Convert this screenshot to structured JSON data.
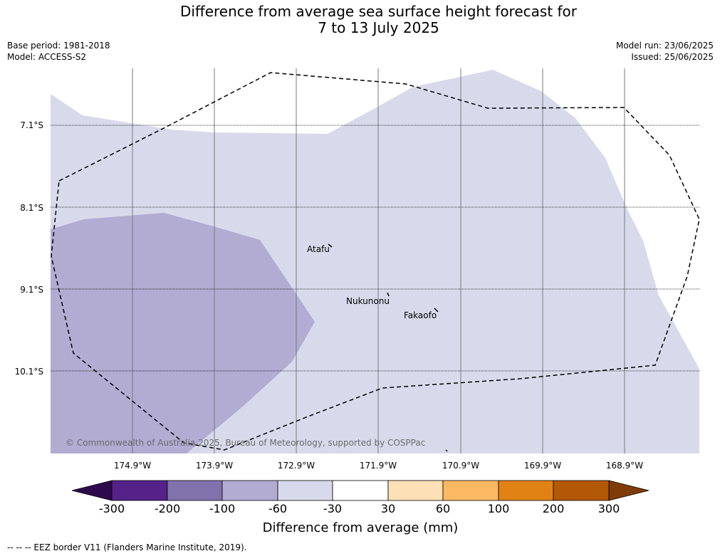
{
  "header": {
    "title_line1": "Difference from average sea surface height forecast for",
    "title_line2": "7 to 13 July 2025",
    "base_period": "Base period: 1981-2018",
    "model": "Model: ACCESS-S2",
    "model_run": "Model run: 23/06/2025",
    "issued": "Issued: 25/06/2025"
  },
  "map": {
    "lat_labels": [
      "7.1°S",
      "8.1°S",
      "9.1°S",
      "10.1°S"
    ],
    "lon_labels": [
      "174.9°W",
      "173.9°W",
      "172.9°W",
      "171.9°W",
      "170.9°W",
      "169.9°W",
      "168.9°W"
    ],
    "places": [
      "Atafu",
      "Nukunonu",
      "Fakaofo"
    ],
    "copyright": "© Commonwealth of Australia 2025, Bureau of Meteorology, supported by COSPPac"
  },
  "colorbar": {
    "tick_labels": [
      "-300",
      "-200",
      "-100",
      "-60",
      "-30",
      "30",
      "60",
      "100",
      "200",
      "300"
    ],
    "colors": [
      "#2d0a4e",
      "#542288",
      "#8073ac",
      "#b2abd2",
      "#d8daeb",
      "#ffffff",
      "#fee0b6",
      "#fdb863",
      "#e08214",
      "#b35806",
      "#7f3b08"
    ],
    "label": "Difference from average (mm)"
  },
  "footer": {
    "note": "--  --  -- EEZ border V11 (Flanders Marine Institute, 2019)."
  }
}
